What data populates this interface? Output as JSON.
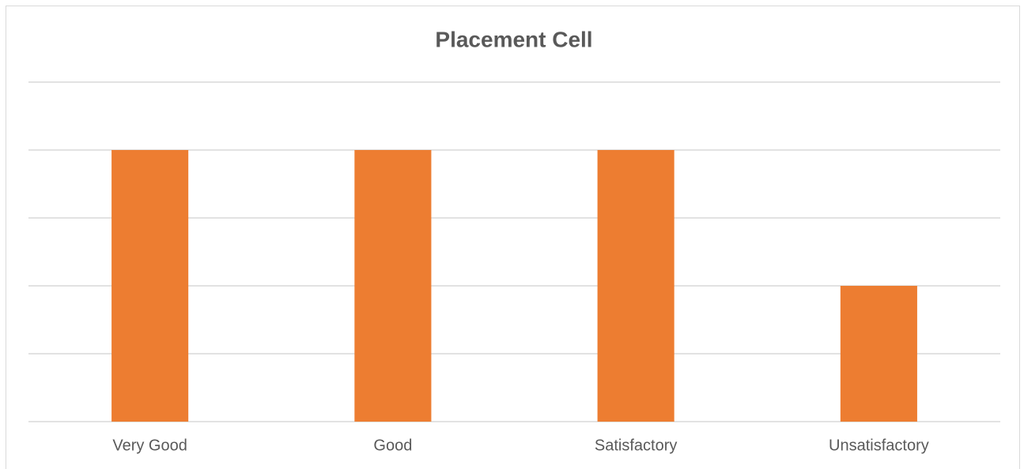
{
  "chart_data": {
    "type": "bar",
    "title": "Placement Cell",
    "categories": [
      "Very Good",
      "Good",
      "Satisfactory",
      "Unsatisfactory"
    ],
    "values": [
      4,
      4,
      4,
      2
    ],
    "color": "#ed7d31",
    "ylim": [
      0,
      5
    ],
    "yticks": [
      0,
      1,
      2,
      3,
      4,
      5
    ],
    "grid": true
  }
}
